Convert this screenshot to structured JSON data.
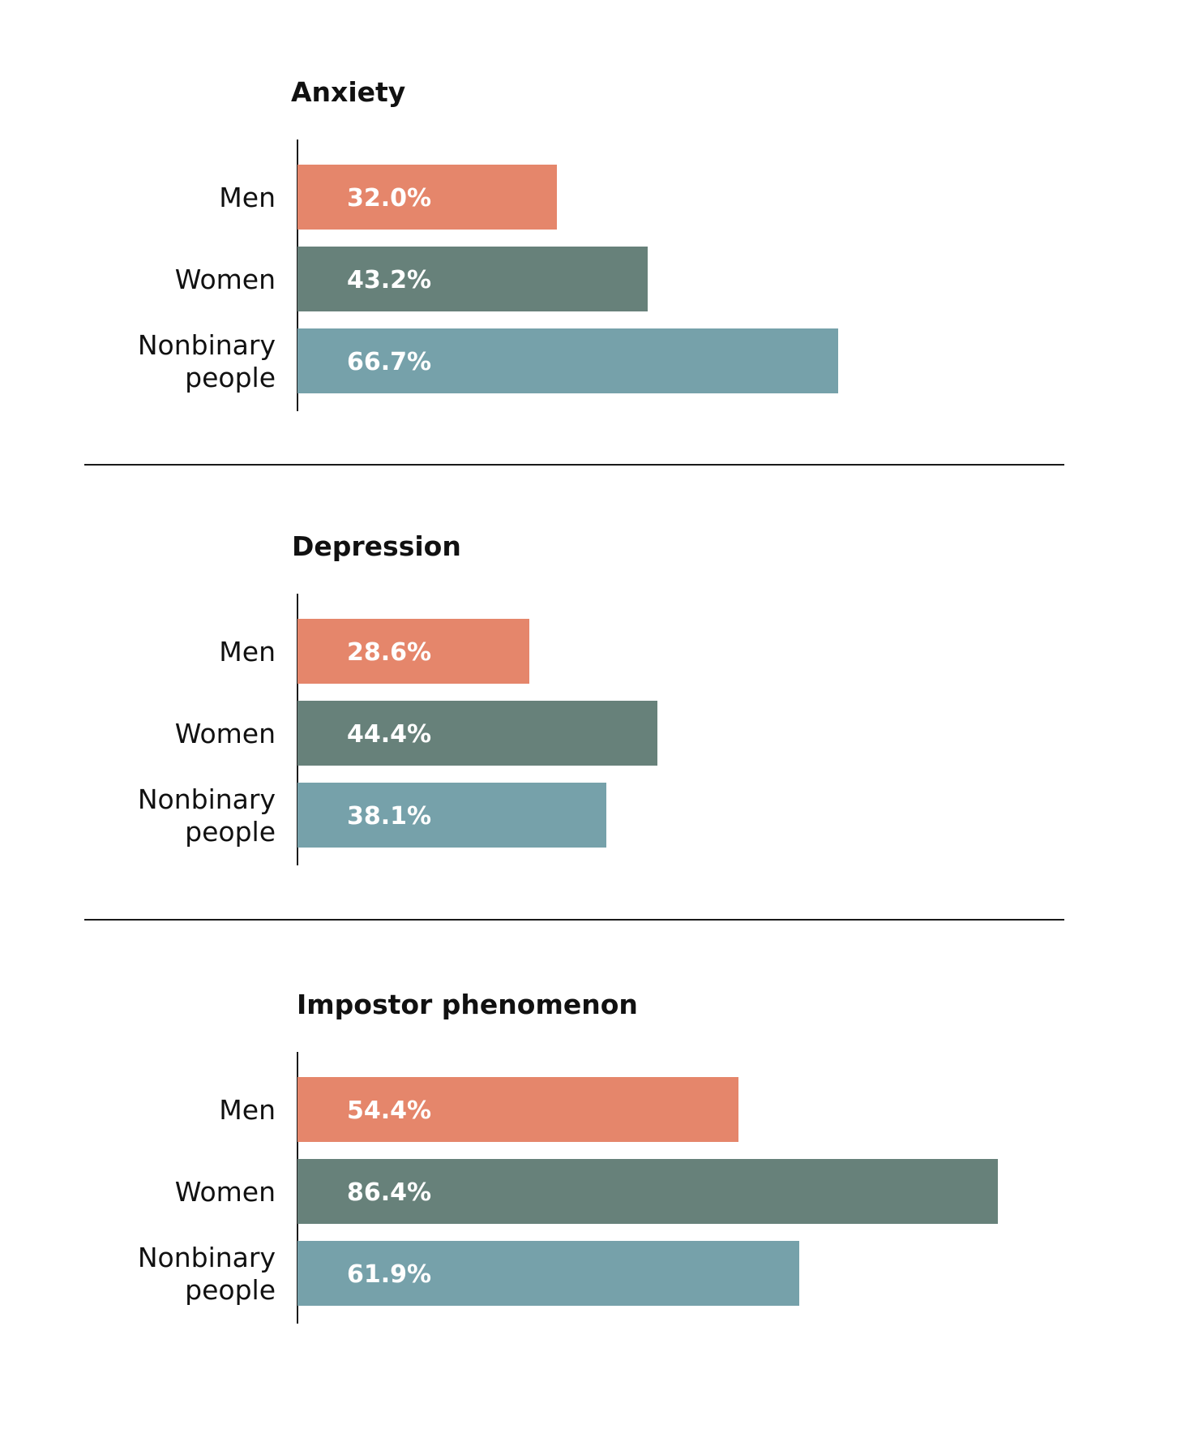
{
  "chart_data": [
    {
      "type": "bar",
      "orientation": "horizontal",
      "title": "Anxiety",
      "categories": [
        "Men",
        "Women",
        "Nonbinary people"
      ],
      "values": [
        32.0,
        43.2,
        66.7
      ],
      "value_labels": [
        "32.0%",
        "43.2%",
        "66.7%"
      ],
      "colors": [
        "#e5866b",
        "#67817a",
        "#76a1aa"
      ],
      "xlim": [
        0,
        100
      ],
      "grid": false
    },
    {
      "type": "bar",
      "orientation": "horizontal",
      "title": "Depression",
      "categories": [
        "Men",
        "Women",
        "Nonbinary people"
      ],
      "values": [
        28.6,
        44.4,
        38.1
      ],
      "value_labels": [
        "28.6%",
        "44.4%",
        "38.1%"
      ],
      "colors": [
        "#e5866b",
        "#67817a",
        "#76a1aa"
      ],
      "xlim": [
        0,
        100
      ],
      "grid": false
    },
    {
      "type": "bar",
      "orientation": "horizontal",
      "title": "Impostor phenomenon",
      "categories": [
        "Men",
        "Women",
        "Nonbinary people"
      ],
      "values": [
        54.4,
        86.4,
        61.9
      ],
      "value_labels": [
        "54.4%",
        "86.4%",
        "61.9%"
      ],
      "colors": [
        "#e5866b",
        "#67817a",
        "#76a1aa"
      ],
      "xlim": [
        0,
        100
      ],
      "grid": false
    }
  ]
}
